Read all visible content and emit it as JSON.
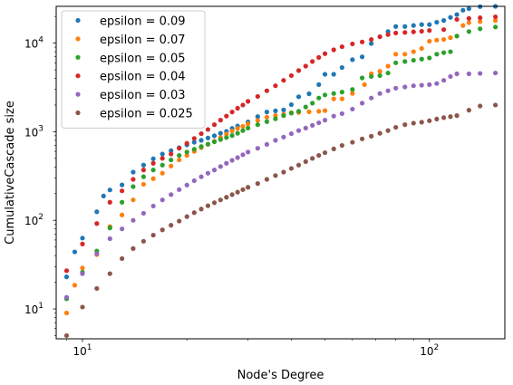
{
  "chart_data": {
    "type": "scatter",
    "xlabel": "Node's Degree",
    "ylabel": "CumulativeCascade size",
    "x_scale": "log",
    "y_scale": "log",
    "xlim": [
      8.4,
      165
    ],
    "ylim": [
      4.6,
      26000
    ],
    "x_ticks": [
      {
        "value": 10,
        "base": "10",
        "exp": "1"
      },
      {
        "value": 100,
        "base": "10",
        "exp": "2"
      }
    ],
    "y_ticks": [
      {
        "value": 10,
        "base": "10",
        "exp": "1"
      },
      {
        "value": 100,
        "base": "10",
        "exp": "2"
      },
      {
        "value": 1000,
        "base": "10",
        "exp": "3"
      },
      {
        "value": 10000,
        "base": "10",
        "exp": "4"
      }
    ],
    "grid": false,
    "legend": "top-left",
    "series": [
      {
        "name": "epsilon = 0.09",
        "color": "#1f77b4",
        "points": [
          [
            9,
            23
          ],
          [
            9.5,
            44
          ],
          [
            10,
            63
          ],
          [
            11,
            125
          ],
          [
            11.5,
            188
          ],
          [
            12,
            220
          ],
          [
            13,
            251
          ],
          [
            14,
            350
          ],
          [
            15,
            420
          ],
          [
            16,
            495
          ],
          [
            17,
            560
          ],
          [
            18,
            610
          ],
          [
            19,
            660
          ],
          [
            20,
            710
          ],
          [
            21,
            760
          ],
          [
            22,
            800
          ],
          [
            23,
            850
          ],
          [
            24,
            900
          ],
          [
            25,
            960
          ],
          [
            26,
            1010
          ],
          [
            27,
            1090
          ],
          [
            28,
            1160
          ],
          [
            30,
            1290
          ],
          [
            32,
            1480
          ],
          [
            34,
            1670
          ],
          [
            36,
            1720
          ],
          [
            38,
            1760
          ],
          [
            40,
            2020
          ],
          [
            42,
            2480
          ],
          [
            45,
            2680
          ],
          [
            48,
            3400
          ],
          [
            50,
            4450
          ],
          [
            53,
            4450
          ],
          [
            56,
            5300
          ],
          [
            60,
            6500
          ],
          [
            64,
            7000
          ],
          [
            68,
            9900
          ],
          [
            72,
            11800
          ],
          [
            76,
            13500
          ],
          [
            80,
            15400
          ],
          [
            85,
            15400
          ],
          [
            90,
            15800
          ],
          [
            95,
            16200
          ],
          [
            100,
            16200
          ],
          [
            105,
            17200
          ],
          [
            110,
            18000
          ],
          [
            115,
            19500
          ],
          [
            120,
            21000
          ],
          [
            125,
            23500
          ],
          [
            130,
            24500
          ],
          [
            140,
            25800
          ],
          [
            155,
            26000
          ]
        ]
      },
      {
        "name": "epsilon = 0.07",
        "color": "#ff7f0e",
        "points": [
          [
            9,
            9
          ],
          [
            9.5,
            18.5
          ],
          [
            10,
            29
          ],
          [
            11,
            41
          ],
          [
            12,
            85
          ],
          [
            13,
            115
          ],
          [
            14,
            170
          ],
          [
            15,
            255
          ],
          [
            16,
            295
          ],
          [
            17,
            340
          ],
          [
            18,
            410
          ],
          [
            19,
            480
          ],
          [
            20,
            540
          ],
          [
            21,
            600
          ],
          [
            22,
            660
          ],
          [
            23,
            720
          ],
          [
            24,
            780
          ],
          [
            25,
            860
          ],
          [
            26,
            940
          ],
          [
            27,
            1020
          ],
          [
            28,
            1090
          ],
          [
            29,
            1150
          ],
          [
            30,
            1230
          ],
          [
            32,
            1340
          ],
          [
            34,
            1460
          ],
          [
            36,
            1520
          ],
          [
            38,
            1570
          ],
          [
            40,
            1640
          ],
          [
            42,
            1650
          ],
          [
            45,
            1680
          ],
          [
            48,
            1700
          ],
          [
            50,
            1730
          ],
          [
            53,
            2350
          ],
          [
            56,
            2350
          ],
          [
            60,
            2700
          ],
          [
            65,
            3400
          ],
          [
            68,
            4500
          ],
          [
            72,
            4800
          ],
          [
            76,
            5500
          ],
          [
            80,
            7500
          ],
          [
            85,
            7500
          ],
          [
            90,
            8000
          ],
          [
            95,
            8700
          ],
          [
            100,
            10500
          ],
          [
            105,
            10800
          ],
          [
            110,
            11000
          ],
          [
            115,
            11500
          ],
          [
            120,
            12000
          ],
          [
            125,
            15800
          ],
          [
            130,
            17000
          ],
          [
            140,
            17500
          ],
          [
            155,
            18000
          ]
        ]
      },
      {
        "name": "epsilon = 0.05",
        "color": "#2ca02c",
        "points": [
          [
            9,
            13
          ],
          [
            10,
            26
          ],
          [
            11,
            45
          ],
          [
            12,
            82
          ],
          [
            13,
            160
          ],
          [
            14,
            240
          ],
          [
            15,
            310
          ],
          [
            16,
            370
          ],
          [
            17,
            420
          ],
          [
            18,
            480
          ],
          [
            19,
            540
          ],
          [
            20,
            590
          ],
          [
            21,
            635
          ],
          [
            22,
            680
          ],
          [
            23,
            725
          ],
          [
            24,
            770
          ],
          [
            25,
            815
          ],
          [
            26,
            860
          ],
          [
            27,
            905
          ],
          [
            28,
            960
          ],
          [
            29,
            1030
          ],
          [
            30,
            1100
          ],
          [
            32,
            1200
          ],
          [
            34,
            1300
          ],
          [
            36,
            1400
          ],
          [
            38,
            1520
          ],
          [
            40,
            1620
          ],
          [
            42,
            1700
          ],
          [
            44,
            1900
          ],
          [
            46,
            2100
          ],
          [
            48,
            2400
          ],
          [
            50,
            2600
          ],
          [
            53,
            2700
          ],
          [
            56,
            2800
          ],
          [
            60,
            3000
          ],
          [
            64,
            4050
          ],
          [
            68,
            4200
          ],
          [
            72,
            4300
          ],
          [
            76,
            4600
          ],
          [
            80,
            6000
          ],
          [
            85,
            6200
          ],
          [
            90,
            6400
          ],
          [
            95,
            6600
          ],
          [
            100,
            6800
          ],
          [
            105,
            7500
          ],
          [
            110,
            7800
          ],
          [
            115,
            8000
          ],
          [
            120,
            12000
          ],
          [
            130,
            13500
          ],
          [
            140,
            14500
          ],
          [
            155,
            15200
          ]
        ]
      },
      {
        "name": "epsilon = 0.04",
        "color": "#d62728",
        "points": [
          [
            9,
            27
          ],
          [
            10,
            54
          ],
          [
            11,
            92
          ],
          [
            12,
            160
          ],
          [
            13,
            215
          ],
          [
            14,
            290
          ],
          [
            15,
            370
          ],
          [
            16,
            440
          ],
          [
            17,
            500
          ],
          [
            18,
            560
          ],
          [
            19,
            650
          ],
          [
            20,
            740
          ],
          [
            21,
            840
          ],
          [
            22,
            950
          ],
          [
            23,
            1060
          ],
          [
            24,
            1200
          ],
          [
            25,
            1350
          ],
          [
            26,
            1500
          ],
          [
            27,
            1670
          ],
          [
            28,
            1840
          ],
          [
            29,
            2000
          ],
          [
            30,
            2200
          ],
          [
            32,
            2500
          ],
          [
            34,
            2900
          ],
          [
            36,
            3300
          ],
          [
            38,
            3800
          ],
          [
            40,
            4300
          ],
          [
            42,
            4900
          ],
          [
            44,
            5500
          ],
          [
            46,
            6200
          ],
          [
            48,
            6900
          ],
          [
            50,
            7600
          ],
          [
            53,
            8400
          ],
          [
            56,
            9100
          ],
          [
            60,
            9800
          ],
          [
            64,
            10300
          ],
          [
            68,
            11000
          ],
          [
            72,
            11800
          ],
          [
            76,
            12500
          ],
          [
            80,
            13000
          ],
          [
            85,
            13200
          ],
          [
            90,
            13400
          ],
          [
            95,
            13600
          ],
          [
            100,
            13900
          ],
          [
            110,
            14200
          ],
          [
            120,
            18500
          ],
          [
            130,
            19000
          ],
          [
            140,
            19300
          ],
          [
            155,
            19800
          ]
        ]
      },
      {
        "name": "epsilon = 0.03",
        "color": "#9467bd",
        "points": [
          [
            9,
            13.5
          ],
          [
            10,
            25
          ],
          [
            11,
            42
          ],
          [
            12,
            62
          ],
          [
            13,
            80
          ],
          [
            14,
            100
          ],
          [
            15,
            120
          ],
          [
            16,
            145
          ],
          [
            17,
            170
          ],
          [
            18,
            195
          ],
          [
            19,
            222
          ],
          [
            20,
            250
          ],
          [
            21,
            280
          ],
          [
            22,
            310
          ],
          [
            23,
            340
          ],
          [
            24,
            370
          ],
          [
            25,
            405
          ],
          [
            26,
            440
          ],
          [
            27,
            475
          ],
          [
            28,
            510
          ],
          [
            29,
            550
          ],
          [
            30,
            590
          ],
          [
            32,
            650
          ],
          [
            34,
            720
          ],
          [
            36,
            800
          ],
          [
            38,
            870
          ],
          [
            40,
            950
          ],
          [
            42,
            1030
          ],
          [
            44,
            1100
          ],
          [
            46,
            1180
          ],
          [
            48,
            1260
          ],
          [
            50,
            1350
          ],
          [
            53,
            1500
          ],
          [
            56,
            1600
          ],
          [
            60,
            1800
          ],
          [
            64,
            2100
          ],
          [
            68,
            2400
          ],
          [
            72,
            2700
          ],
          [
            76,
            2900
          ],
          [
            80,
            3100
          ],
          [
            85,
            3200
          ],
          [
            90,
            3300
          ],
          [
            95,
            3350
          ],
          [
            100,
            3400
          ],
          [
            105,
            3500
          ],
          [
            110,
            3800
          ],
          [
            115,
            4200
          ],
          [
            120,
            4500
          ],
          [
            130,
            4500
          ],
          [
            140,
            4550
          ],
          [
            155,
            4600
          ]
        ]
      },
      {
        "name": "epsilon = 0.025",
        "color": "#8c564b",
        "points": [
          [
            9,
            5
          ],
          [
            10,
            10.5
          ],
          [
            11,
            17
          ],
          [
            12,
            25
          ],
          [
            13,
            37
          ],
          [
            14,
            48
          ],
          [
            15,
            58
          ],
          [
            16,
            68
          ],
          [
            17,
            78
          ],
          [
            18,
            88
          ],
          [
            19,
            98
          ],
          [
            20,
            110
          ],
          [
            21,
            122
          ],
          [
            22,
            134
          ],
          [
            23,
            146
          ],
          [
            24,
            158
          ],
          [
            25,
            170
          ],
          [
            26,
            182
          ],
          [
            27,
            195
          ],
          [
            28,
            208
          ],
          [
            29,
            222
          ],
          [
            30,
            236
          ],
          [
            32,
            260
          ],
          [
            34,
            290
          ],
          [
            36,
            320
          ],
          [
            38,
            350
          ],
          [
            40,
            385
          ],
          [
            42,
            420
          ],
          [
            44,
            460
          ],
          [
            46,
            500
          ],
          [
            48,
            540
          ],
          [
            50,
            580
          ],
          [
            53,
            640
          ],
          [
            56,
            700
          ],
          [
            60,
            760
          ],
          [
            64,
            830
          ],
          [
            68,
            890
          ],
          [
            72,
            960
          ],
          [
            76,
            1030
          ],
          [
            80,
            1120
          ],
          [
            85,
            1200
          ],
          [
            90,
            1250
          ],
          [
            95,
            1280
          ],
          [
            100,
            1330
          ],
          [
            105,
            1390
          ],
          [
            110,
            1440
          ],
          [
            115,
            1480
          ],
          [
            120,
            1520
          ],
          [
            130,
            1750
          ],
          [
            140,
            1950
          ],
          [
            155,
            2000
          ]
        ]
      }
    ]
  }
}
